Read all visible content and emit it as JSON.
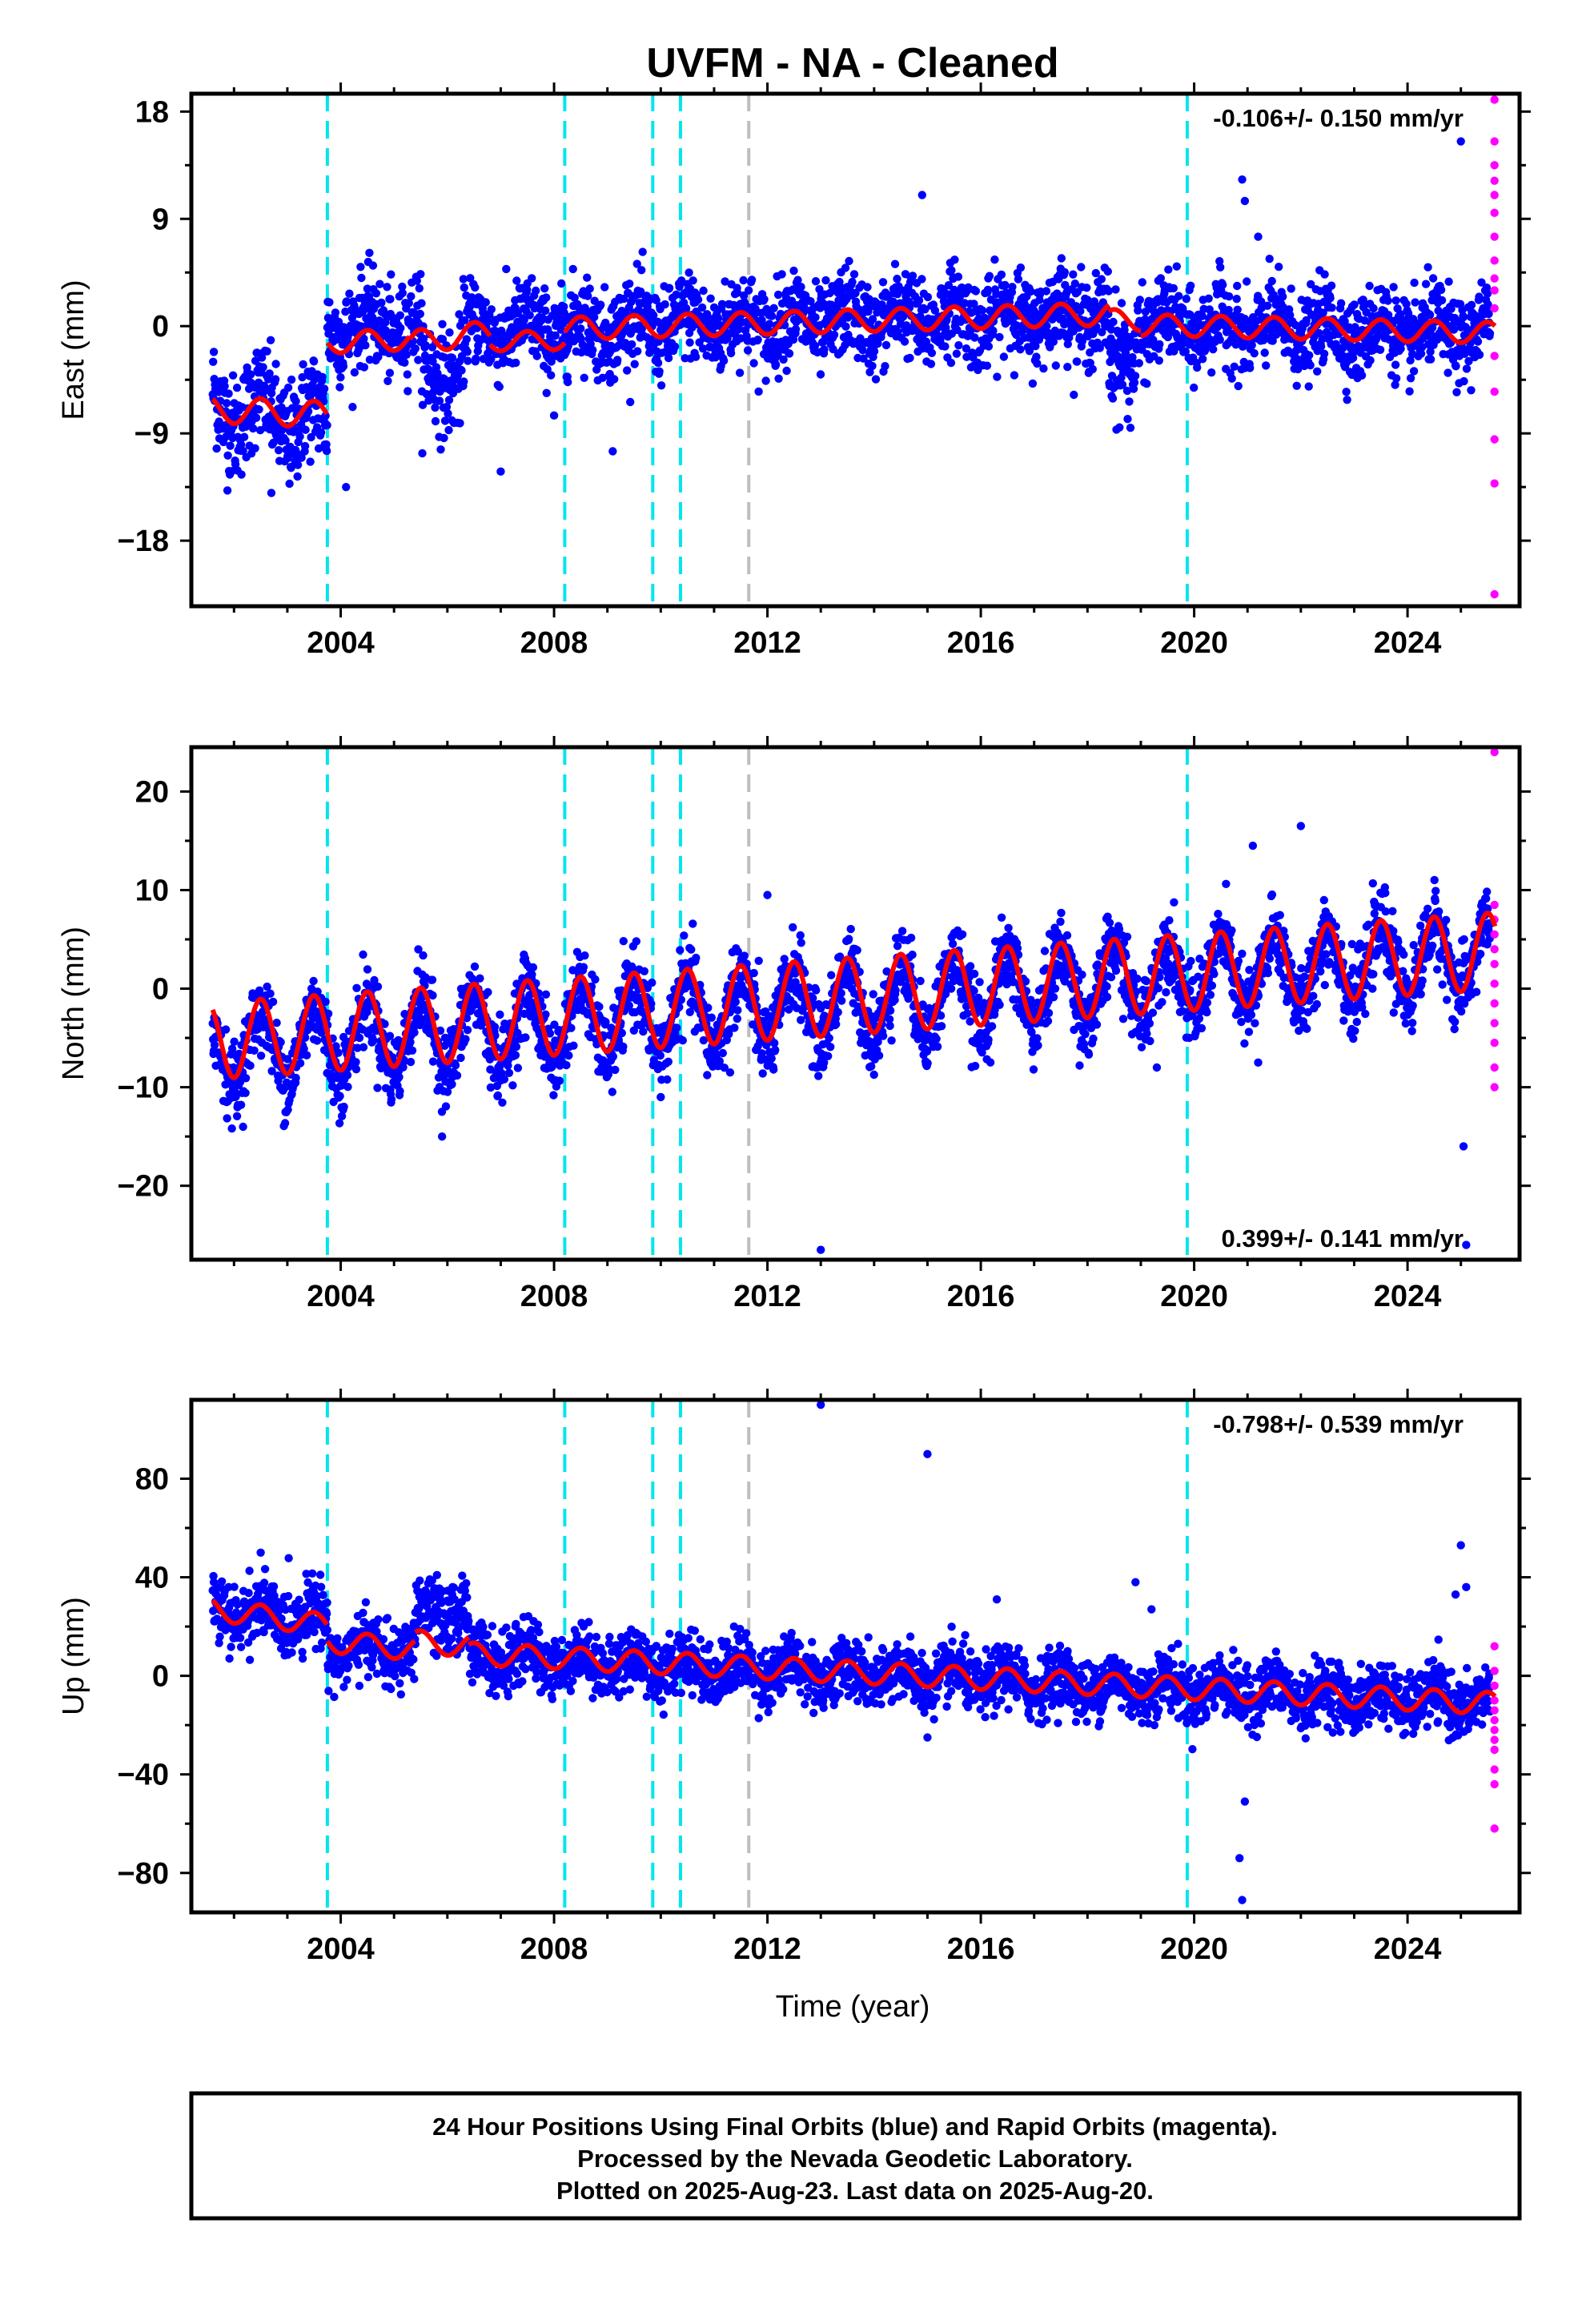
{
  "title": "UVFM  - NA - Cleaned",
  "xlabel": "Time (year)",
  "footer": {
    "line1": "24 Hour Positions Using Final Orbits (blue) and Rapid Orbits (magenta).",
    "line2": "Processed by the Nevada Geodetic Laboratory.",
    "line3": "Plotted on 2025-Aug-23. Last data on 2025-Aug-20."
  },
  "colors": {
    "final_orbits": "#0000ff",
    "rapid_orbits": "#ff00ff",
    "model_fit": "#ff0000",
    "step_marker": "#00e5ee",
    "gap_marker": "#bebebe"
  },
  "chart_data": [
    {
      "type": "scatter",
      "ylabel": "East (mm)",
      "rate_label": "-0.106+/- 0.150 mm/yr",
      "xlim": [
        2001.2,
        2026.1
      ],
      "ylim": [
        -23.5,
        19.5
      ],
      "xticks": [
        2004,
        2008,
        2012,
        2016,
        2020,
        2024
      ],
      "yticks": [
        18,
        9,
        0,
        -9,
        -18
      ],
      "ytick_labels": [
        "18",
        "9",
        "0",
        "−9",
        "−18"
      ],
      "dashed_markers_cyan": [
        2003.75,
        2008.2,
        2009.85,
        2010.37,
        2019.87
      ],
      "dashed_markers_gray": [
        2011.65
      ],
      "series": [
        {
          "kind": "final",
          "segments": [
            [
              2001.6,
              2003.75,
              -6.5,
              -0.8,
              1.8,
              2.2
            ],
            [
              2003.75,
              2005.5,
              0.0,
              0,
              1.0,
              1.9
            ],
            [
              2005.5,
              2006.3,
              -4.0,
              0,
              0.8,
              2.2
            ],
            [
              2006.3,
              2018.4,
              -0.4,
              0.12,
              1.0,
              1.8
            ],
            [
              2018.4,
              2018.9,
              -3.0,
              0,
              0.8,
              2.2
            ],
            [
              2018.9,
              2025.55,
              0.0,
              -0.1,
              1.0,
              1.7
            ]
          ]
        },
        {
          "kind": "rapid",
          "y": [
            19,
            15.5,
            13.5,
            12.2,
            11.0,
            9.5,
            7.5,
            5.5,
            4.0,
            3.0,
            1.5,
            -2.5,
            -5.5,
            -9.5,
            -13.2,
            -22.5
          ]
        },
        {
          "kind": "outliers",
          "points": [
            [
              2007.0,
              -12.2
            ],
            [
              2009.1,
              -10.5
            ],
            [
              2014.9,
              11.0
            ],
            [
              2020.9,
              12.3
            ],
            [
              2020.95,
              10.5
            ],
            [
              2021.2,
              7.5
            ],
            [
              2025.0,
              15.5
            ],
            [
              2018.6,
              -8.5
            ],
            [
              2002.7,
              -14.0
            ],
            [
              2004.1,
              -13.5
            ],
            [
              2008.0,
              -7.5
            ]
          ]
        },
        {
          "kind": "model",
          "segments": [
            [
              2001.6,
              2003.75,
              -7.0,
              -0.2,
              1.1
            ],
            [
              2003.75,
              2005.3,
              -1.4,
              0.2,
              0.9
            ],
            [
              2005.3,
              2006.8,
              -1.4,
              0.6,
              1.0
            ],
            [
              2006.8,
              2008.2,
              -1.3,
              0.1,
              0.8
            ],
            [
              2008.2,
              2018.4,
              -0.2,
              0.12,
              0.95
            ],
            [
              2018.4,
              2019.0,
              0.5,
              0,
              0.9
            ],
            [
              2019.0,
              2025.65,
              0.1,
              -0.1,
              0.9
            ]
          ]
        }
      ]
    },
    {
      "type": "scatter",
      "ylabel": "North (mm)",
      "rate_label": "0.399+/- 0.141 mm/yr",
      "xlim": [
        2001.2,
        2026.1
      ],
      "ylim": [
        -27.5,
        24.5
      ],
      "xticks": [
        2004,
        2008,
        2012,
        2016,
        2020,
        2024
      ],
      "yticks": [
        20,
        10,
        0,
        -10,
        -20
      ],
      "ytick_labels": [
        "20",
        "10",
        "0",
        "−10",
        "−20"
      ],
      "dashed_markers_cyan": [
        2003.75,
        2008.2,
        2009.85,
        2010.37,
        2019.87
      ],
      "dashed_markers_gray": [
        2011.65
      ],
      "series": [
        {
          "kind": "final",
          "segments": [
            [
              2001.6,
              2025.55,
              -6.2,
              0.4,
              3.6,
              1.9
            ]
          ]
        },
        {
          "kind": "rapid",
          "y": [
            24,
            8.5,
            7.0,
            5.5,
            4.0,
            2.5,
            0.5,
            -1.5,
            -3.5,
            -5.5,
            -8.0,
            -10.0
          ]
        },
        {
          "kind": "outliers",
          "points": [
            [
              2012.0,
              9.5
            ],
            [
              2013.0,
              -26.5
            ],
            [
              2021.1,
              14.5
            ],
            [
              2022.0,
              16.5
            ],
            [
              2025.05,
              -16.0
            ],
            [
              2025.1,
              -26.0
            ],
            [
              2005.9,
              -15.0
            ],
            [
              2010.0,
              -11.0
            ],
            [
              2019.3,
              -8.0
            ],
            [
              2021.2,
              -7.5
            ],
            [
              2011.3,
              -8.5
            ]
          ]
        },
        {
          "kind": "model",
          "segments": [
            [
              2001.6,
              2025.65,
              -5.3,
              0.38,
              3.9
            ]
          ]
        }
      ]
    },
    {
      "type": "scatter",
      "ylabel": "Up (mm)",
      "rate_label": "-0.798+/- 0.539 mm/yr",
      "xlim": [
        2001.2,
        2026.1
      ],
      "ylim": [
        -96,
        112
      ],
      "xticks": [
        2004,
        2008,
        2012,
        2016,
        2020,
        2024
      ],
      "yticks": [
        80,
        40,
        0,
        -40,
        -80
      ],
      "ytick_labels": [
        "80",
        "40",
        "0",
        "−40",
        "−80"
      ],
      "dashed_markers_cyan": [
        2003.75,
        2008.2,
        2009.85,
        2010.37,
        2019.87
      ],
      "dashed_markers_gray": [
        2011.65
      ],
      "series": [
        {
          "kind": "final",
          "segments": [
            [
              2001.6,
              2003.75,
              26,
              -1.5,
              4.0,
              6.5
            ],
            [
              2003.75,
              2005.4,
              11,
              -1.0,
              4.0,
              6.0
            ],
            [
              2005.4,
              2006.4,
              25,
              0,
              4.0,
              7.5
            ],
            [
              2006.4,
              2025.55,
              8,
              -1.0,
              4.0,
              6.0
            ]
          ]
        },
        {
          "kind": "rapid",
          "y": [
            12,
            2,
            -4,
            -10,
            -14,
            -18,
            -22,
            -26,
            -30,
            -38,
            -44,
            -62
          ]
        },
        {
          "kind": "outliers",
          "points": [
            [
              2013.0,
              110
            ],
            [
              2015.0,
              90
            ],
            [
              2016.3,
              31
            ],
            [
              2018.9,
              38
            ],
            [
              2020.85,
              -74
            ],
            [
              2020.95,
              -51
            ],
            [
              2020.9,
              -91
            ],
            [
              2025.0,
              53
            ],
            [
              2025.1,
              36
            ],
            [
              2024.9,
              33
            ],
            [
              2002.5,
              50
            ],
            [
              2015.0,
              -25
            ],
            [
              2019.2,
              27
            ]
          ]
        },
        {
          "kind": "model",
          "segments": [
            [
              2001.6,
              2003.75,
              27,
              -3.0,
              4.5
            ],
            [
              2003.75,
              2005.4,
              14,
              -2.0,
              4.5
            ],
            [
              2005.4,
              2006.4,
              14,
              -2.0,
              4.5
            ],
            [
              2006.4,
              2025.65,
              9,
              -1.05,
              4.5
            ]
          ]
        }
      ]
    }
  ]
}
